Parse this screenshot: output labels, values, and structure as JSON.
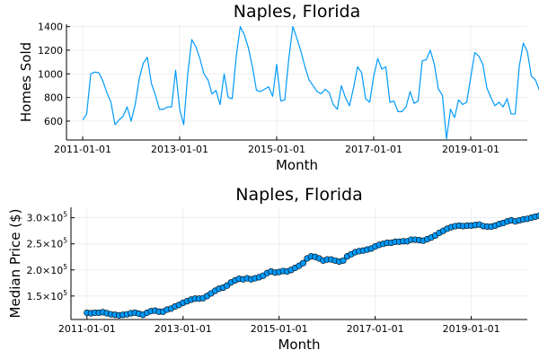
{
  "chart_data": [
    {
      "type": "line",
      "title": "Naples, Florida",
      "xlabel": "Month",
      "ylabel": "Homes Sold",
      "x_start": "2011-01-01",
      "x_step": "1 month",
      "xlim": [
        "2010-09-01",
        "2020-03-01"
      ],
      "ylim": [
        440,
        1420
      ],
      "xticks": [
        "2011-01-01",
        "2013-01-01",
        "2015-01-01",
        "2017-01-01",
        "2019-01-01"
      ],
      "yticks": [
        600,
        800,
        1000,
        1200,
        1400
      ],
      "grid": true,
      "legend": "none",
      "color": "#009AFA",
      "values": [
        610,
        660,
        1000,
        1015,
        1010,
        940,
        840,
        760,
        570,
        610,
        640,
        720,
        600,
        740,
        960,
        1090,
        1140,
        920,
        820,
        700,
        700,
        720,
        720,
        1030,
        700,
        570,
        1000,
        1290,
        1230,
        1130,
        1000,
        950,
        830,
        860,
        740,
        1000,
        800,
        790,
        1150,
        1400,
        1330,
        1220,
        1060,
        860,
        850,
        870,
        890,
        810,
        1080,
        770,
        780,
        1130,
        1400,
        1300,
        1190,
        1060,
        950,
        900,
        850,
        830,
        870,
        840,
        740,
        700,
        900,
        800,
        730,
        880,
        1060,
        1010,
        790,
        760,
        980,
        1130,
        1040,
        1060,
        760,
        770,
        680,
        680,
        720,
        850,
        750,
        770,
        1110,
        1120,
        1200,
        1080,
        870,
        820,
        450,
        700,
        630,
        780,
        740,
        760,
        970,
        1180,
        1150,
        1080,
        880,
        800,
        730,
        760,
        720,
        790,
        660,
        660,
        1060,
        1260,
        1190,
        980,
        950,
        860,
        750,
        900,
        760,
        1040,
        760
      ]
    },
    {
      "type": "scatter",
      "title": "Naples, Florida",
      "xlabel": "Month",
      "ylabel": "Median Price ($)",
      "x_start": "2011-01-01",
      "x_step": "1 month",
      "xlim": [
        "2010-09-01",
        "2020-03-01"
      ],
      "ylim": [
        105000,
        320000
      ],
      "xticks": [
        "2011-01-01",
        "2013-01-01",
        "2015-01-01",
        "2017-01-01",
        "2019-01-01"
      ],
      "yticks": [
        {
          "value": 150000,
          "mantissa": "1.5×10",
          "exponent": "5"
        },
        {
          "value": 200000,
          "mantissa": "2.0×10",
          "exponent": "5"
        },
        {
          "value": 250000,
          "mantissa": "2.5×10",
          "exponent": "5"
        },
        {
          "value": 300000,
          "mantissa": "3.0×10",
          "exponent": "5"
        }
      ],
      "grid": true,
      "legend": "none",
      "color": "#009AFA",
      "values": [
        118000,
        117000,
        118000,
        118000,
        119000,
        117000,
        115000,
        114000,
        113000,
        114000,
        115000,
        117000,
        118000,
        116000,
        114000,
        118000,
        121000,
        122000,
        120000,
        120000,
        124000,
        126000,
        130000,
        133000,
        137000,
        140000,
        143000,
        145000,
        145000,
        146000,
        150000,
        155000,
        160000,
        164000,
        166000,
        170000,
        176000,
        180000,
        183000,
        182000,
        184000,
        182000,
        184000,
        186000,
        189000,
        194000,
        197000,
        195000,
        196000,
        198000,
        197000,
        200000,
        204000,
        208000,
        213000,
        222000,
        226000,
        225000,
        222000,
        218000,
        220000,
        220000,
        218000,
        216000,
        218000,
        226000,
        230000,
        234000,
        236000,
        237000,
        239000,
        241000,
        245000,
        248000,
        250000,
        252000,
        252000,
        254000,
        254000,
        255000,
        255000,
        258000,
        258000,
        257000,
        256000,
        259000,
        262000,
        266000,
        271000,
        275000,
        279000,
        282000,
        284000,
        285000,
        284000,
        285000,
        285000,
        286000,
        287000,
        284000,
        283000,
        283000,
        285000,
        288000,
        290000,
        293000,
        295000,
        293000,
        295000,
        297000,
        298000,
        300000,
        302000,
        304000,
        312000
      ]
    }
  ]
}
